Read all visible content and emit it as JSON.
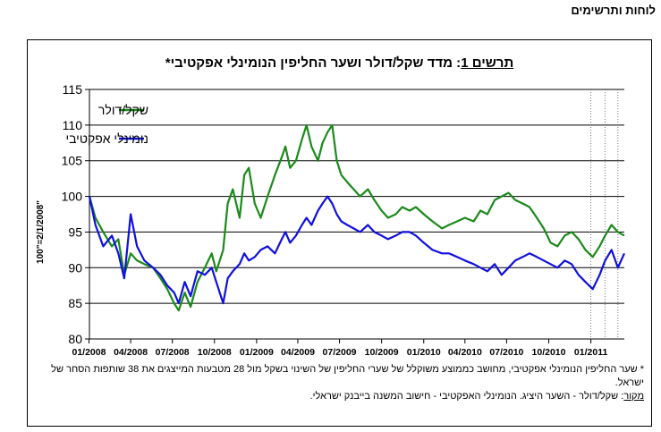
{
  "page": {
    "header": "לוחות ותרשימים"
  },
  "chart_data": {
    "type": "line",
    "title": {
      "prefix": "תרשים 1",
      "text": ": מדד שקל/דולר ושער החליפין הנומינלי אפקטיבי*"
    },
    "ylabel": "100\"=2/1/2008\"",
    "ylim": [
      80,
      115
    ],
    "yticks": [
      80,
      85,
      90,
      95,
      100,
      105,
      110,
      115
    ],
    "xlim": [
      "2008-01-02",
      "2011-03-15"
    ],
    "xticks": [
      {
        "date": "2008-01-01",
        "label": "01/2008"
      },
      {
        "date": "2008-04-01",
        "label": "04/2008"
      },
      {
        "date": "2008-07-01",
        "label": "07/2008"
      },
      {
        "date": "2008-10-01",
        "label": "10/2008"
      },
      {
        "date": "2009-01-01",
        "label": "01/2009"
      },
      {
        "date": "2009-04-01",
        "label": "04/2009"
      },
      {
        "date": "2009-07-01",
        "label": "07/2009"
      },
      {
        "date": "2009-10-01",
        "label": "10/2009"
      },
      {
        "date": "2010-01-01",
        "label": "01/2010"
      },
      {
        "date": "2010-04-01",
        "label": "04/2010"
      },
      {
        "date": "2010-07-01",
        "label": "07/2010"
      },
      {
        "date": "2010-10-01",
        "label": "10/2010"
      },
      {
        "date": "2011-01-01",
        "label": "01/2011"
      }
    ],
    "grid": "horizontal",
    "vlines": [
      "2011-01-01",
      "2011-02-01",
      "2011-03-01"
    ],
    "legend_position": "top-left",
    "series": [
      {
        "name": "שקל/דולר",
        "color": "#1a8a1a",
        "points": [
          [
            "2008-01-02",
            100.0
          ],
          [
            "2008-01-15",
            97.0
          ],
          [
            "2008-02-01",
            95.0
          ],
          [
            "2008-02-20",
            93.0
          ],
          [
            "2008-03-05",
            94.0
          ],
          [
            "2008-03-18",
            89.0
          ],
          [
            "2008-04-01",
            92.0
          ],
          [
            "2008-04-15",
            91.0
          ],
          [
            "2008-05-01",
            90.5
          ],
          [
            "2008-05-20",
            90.0
          ],
          [
            "2008-06-05",
            88.5
          ],
          [
            "2008-06-20",
            87.0
          ],
          [
            "2008-07-05",
            85.0
          ],
          [
            "2008-07-15",
            84.0
          ],
          [
            "2008-07-28",
            86.5
          ],
          [
            "2008-08-10",
            84.5
          ],
          [
            "2008-08-25",
            88.0
          ],
          [
            "2008-09-10",
            90.0
          ],
          [
            "2008-09-25",
            92.0
          ],
          [
            "2008-10-05",
            89.5
          ],
          [
            "2008-10-20",
            92.5
          ],
          [
            "2008-10-30",
            99.0
          ],
          [
            "2008-11-10",
            101.0
          ],
          [
            "2008-11-25",
            97.0
          ],
          [
            "2008-12-05",
            103.0
          ],
          [
            "2008-12-15",
            104.0
          ],
          [
            "2008-12-28",
            99.0
          ],
          [
            "2009-01-10",
            97.0
          ],
          [
            "2009-01-25",
            100.0
          ],
          [
            "2009-02-10",
            103.0
          ],
          [
            "2009-02-25",
            105.5
          ],
          [
            "2009-03-05",
            107.0
          ],
          [
            "2009-03-15",
            104.0
          ],
          [
            "2009-03-28",
            105.0
          ],
          [
            "2009-04-10",
            108.0
          ],
          [
            "2009-04-20",
            110.0
          ],
          [
            "2009-05-01",
            107.0
          ],
          [
            "2009-05-15",
            105.0
          ],
          [
            "2009-05-25",
            107.5
          ],
          [
            "2009-06-05",
            109.0
          ],
          [
            "2009-06-15",
            110.0
          ],
          [
            "2009-06-25",
            105.0
          ],
          [
            "2009-07-05",
            103.0
          ],
          [
            "2009-07-18",
            102.0
          ],
          [
            "2009-08-01",
            101.0
          ],
          [
            "2009-08-15",
            100.0
          ],
          [
            "2009-09-01",
            101.0
          ],
          [
            "2009-09-15",
            99.5
          ],
          [
            "2009-10-01",
            98.0
          ],
          [
            "2009-10-15",
            97.0
          ],
          [
            "2009-11-01",
            97.5
          ],
          [
            "2009-11-15",
            98.5
          ],
          [
            "2009-12-01",
            98.0
          ],
          [
            "2009-12-15",
            98.5
          ],
          [
            "2010-01-01",
            97.5
          ],
          [
            "2010-01-20",
            96.5
          ],
          [
            "2010-02-10",
            95.5
          ],
          [
            "2010-02-25",
            96.0
          ],
          [
            "2010-03-15",
            96.5
          ],
          [
            "2010-04-01",
            97.0
          ],
          [
            "2010-04-20",
            96.5
          ],
          [
            "2010-05-05",
            98.0
          ],
          [
            "2010-05-20",
            97.5
          ],
          [
            "2010-06-05",
            99.5
          ],
          [
            "2010-06-20",
            100.0
          ],
          [
            "2010-07-05",
            100.5
          ],
          [
            "2010-07-20",
            99.5
          ],
          [
            "2010-08-05",
            99.0
          ],
          [
            "2010-08-20",
            98.5
          ],
          [
            "2010-09-05",
            97.0
          ],
          [
            "2010-09-20",
            95.5
          ],
          [
            "2010-10-05",
            93.5
          ],
          [
            "2010-10-20",
            93.0
          ],
          [
            "2010-11-05",
            94.5
          ],
          [
            "2010-11-20",
            95.0
          ],
          [
            "2010-12-05",
            94.0
          ],
          [
            "2010-12-20",
            92.5
          ],
          [
            "2011-01-05",
            91.5
          ],
          [
            "2011-01-20",
            93.0
          ],
          [
            "2011-02-01",
            94.5
          ],
          [
            "2011-02-15",
            96.0
          ],
          [
            "2011-03-01",
            95.0
          ],
          [
            "2011-03-15",
            94.5
          ]
        ]
      },
      {
        "name": "נומינלי אפקטיבי",
        "color": "#1010e0",
        "points": [
          [
            "2008-01-02",
            100.0
          ],
          [
            "2008-01-15",
            96.0
          ],
          [
            "2008-02-01",
            93.0
          ],
          [
            "2008-02-20",
            94.5
          ],
          [
            "2008-03-05",
            92.0
          ],
          [
            "2008-03-18",
            88.5
          ],
          [
            "2008-04-01",
            97.5
          ],
          [
            "2008-04-15",
            93.0
          ],
          [
            "2008-05-01",
            91.0
          ],
          [
            "2008-05-20",
            90.0
          ],
          [
            "2008-06-05",
            89.0
          ],
          [
            "2008-06-20",
            87.5
          ],
          [
            "2008-07-05",
            86.5
          ],
          [
            "2008-07-15",
            85.0
          ],
          [
            "2008-07-28",
            88.0
          ],
          [
            "2008-08-10",
            86.0
          ],
          [
            "2008-08-25",
            89.5
          ],
          [
            "2008-09-10",
            89.0
          ],
          [
            "2008-09-25",
            90.0
          ],
          [
            "2008-10-05",
            88.0
          ],
          [
            "2008-10-20",
            85.0
          ],
          [
            "2008-10-30",
            88.5
          ],
          [
            "2008-11-10",
            89.5
          ],
          [
            "2008-11-25",
            90.5
          ],
          [
            "2008-12-05",
            92.0
          ],
          [
            "2008-12-15",
            91.0
          ],
          [
            "2008-12-28",
            91.5
          ],
          [
            "2009-01-10",
            92.5
          ],
          [
            "2009-01-25",
            93.0
          ],
          [
            "2009-02-10",
            92.0
          ],
          [
            "2009-02-25",
            94.0
          ],
          [
            "2009-03-05",
            95.0
          ],
          [
            "2009-03-15",
            93.5
          ],
          [
            "2009-03-28",
            94.5
          ],
          [
            "2009-04-10",
            96.0
          ],
          [
            "2009-04-20",
            97.0
          ],
          [
            "2009-05-01",
            96.0
          ],
          [
            "2009-05-15",
            98.0
          ],
          [
            "2009-05-25",
            99.0
          ],
          [
            "2009-06-05",
            100.0
          ],
          [
            "2009-06-15",
            99.0
          ],
          [
            "2009-06-25",
            97.5
          ],
          [
            "2009-07-05",
            96.5
          ],
          [
            "2009-07-18",
            96.0
          ],
          [
            "2009-08-01",
            95.5
          ],
          [
            "2009-08-15",
            95.0
          ],
          [
            "2009-09-01",
            96.0
          ],
          [
            "2009-09-15",
            95.0
          ],
          [
            "2009-10-01",
            94.5
          ],
          [
            "2009-10-15",
            94.0
          ],
          [
            "2009-11-01",
            94.5
          ],
          [
            "2009-11-15",
            95.0
          ],
          [
            "2009-12-01",
            95.0
          ],
          [
            "2009-12-15",
            94.5
          ],
          [
            "2010-01-01",
            93.5
          ],
          [
            "2010-01-20",
            92.5
          ],
          [
            "2010-02-10",
            92.0
          ],
          [
            "2010-02-25",
            92.0
          ],
          [
            "2010-03-15",
            91.5
          ],
          [
            "2010-04-01",
            91.0
          ],
          [
            "2010-04-20",
            90.5
          ],
          [
            "2010-05-05",
            90.0
          ],
          [
            "2010-05-20",
            89.5
          ],
          [
            "2010-06-05",
            90.5
          ],
          [
            "2010-06-20",
            89.0
          ],
          [
            "2010-07-05",
            90.0
          ],
          [
            "2010-07-20",
            91.0
          ],
          [
            "2010-08-05",
            91.5
          ],
          [
            "2010-08-20",
            92.0
          ],
          [
            "2010-09-05",
            91.5
          ],
          [
            "2010-09-20",
            91.0
          ],
          [
            "2010-10-05",
            90.5
          ],
          [
            "2010-10-20",
            90.0
          ],
          [
            "2010-11-05",
            91.0
          ],
          [
            "2010-11-20",
            90.5
          ],
          [
            "2010-12-05",
            89.0
          ],
          [
            "2010-12-20",
            88.0
          ],
          [
            "2011-01-05",
            87.0
          ],
          [
            "2011-01-20",
            89.0
          ],
          [
            "2011-02-01",
            91.0
          ],
          [
            "2011-02-15",
            92.5
          ],
          [
            "2011-03-01",
            90.0
          ],
          [
            "2011-03-15",
            92.0
          ]
        ]
      }
    ]
  },
  "footnotes": {
    "note": "* שער החליפין הנומינלי אפקטיבי, מחושב כממוצע משוקלל של שערי החליפין של השינוי בשקל מול 28 מטבעות המייצגים את 38 שותפות הסחר של ישראל.",
    "source_label": "מקור",
    "source_text": ": שקל/דולר - השער היציג. הנומינלי האפקטיבי - חישוב המשנה בייבנק ישראלי."
  }
}
